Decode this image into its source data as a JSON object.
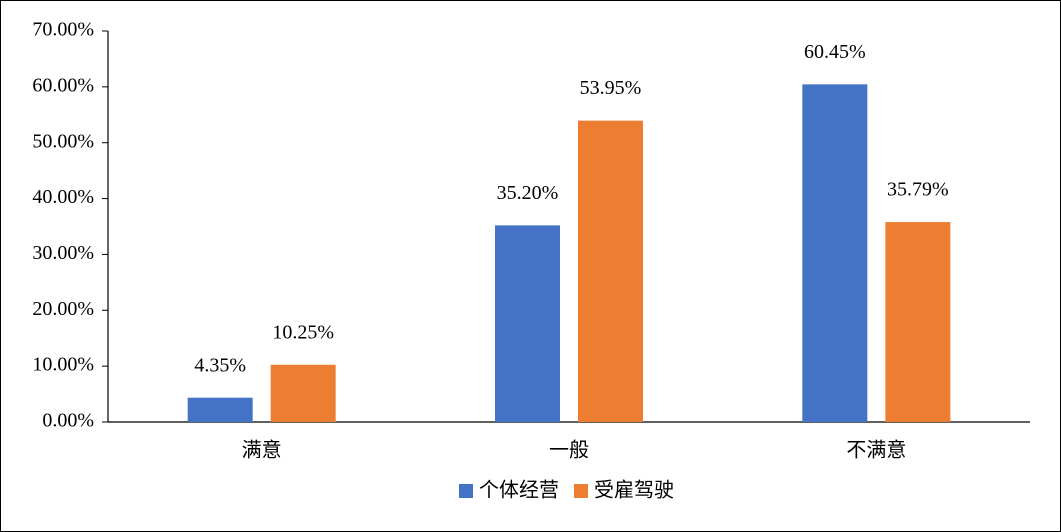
{
  "chart_data": {
    "type": "bar",
    "categories": [
      "满意",
      "一般",
      "不满意"
    ],
    "series": [
      {
        "name": "个体经营",
        "color": "#4472c4",
        "values": [
          4.35,
          35.2,
          60.45
        ],
        "value_labels": [
          "4.35%",
          "35.20%",
          "60.45%"
        ]
      },
      {
        "name": "受雇驾驶",
        "color": "#ed7d31",
        "values": [
          10.25,
          53.95,
          35.79
        ],
        "value_labels": [
          "10.25%",
          "53.95%",
          "35.79%"
        ]
      }
    ],
    "ylim": [
      0,
      70
    ],
    "yticks": [
      {
        "value": 0,
        "label": "0.00%"
      },
      {
        "value": 10,
        "label": "10.00%"
      },
      {
        "value": 20,
        "label": "20.00%"
      },
      {
        "value": 30,
        "label": "30.00%"
      },
      {
        "value": 40,
        "label": "40.00%"
      },
      {
        "value": 50,
        "label": "50.00%"
      },
      {
        "value": 60,
        "label": "60.00%"
      },
      {
        "value": 70,
        "label": "70.00%"
      }
    ],
    "grid": false,
    "legend": "bottom"
  }
}
